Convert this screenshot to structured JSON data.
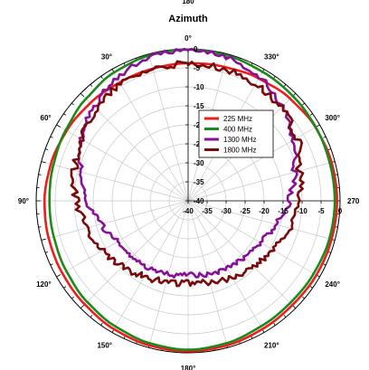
{
  "chart_data": {
    "type": "polar-line",
    "title": "Azimuth",
    "top_label": "180",
    "angle_labels": [
      {
        "angle": 0,
        "text": "0°"
      },
      {
        "angle": 30,
        "text": "330°"
      },
      {
        "angle": 60,
        "text": "300°"
      },
      {
        "angle": 90,
        "text": "270"
      },
      {
        "angle": 120,
        "text": "240°"
      },
      {
        "angle": 150,
        "text": "210°"
      },
      {
        "angle": 180,
        "text": "180°"
      },
      {
        "angle": 210,
        "text": "150°"
      },
      {
        "angle": 240,
        "text": "120°"
      },
      {
        "angle": 270,
        "text": "90°"
      },
      {
        "angle": 300,
        "text": "60°"
      },
      {
        "angle": 330,
        "text": "30°"
      }
    ],
    "radial_range": [
      -40,
      0
    ],
    "radial_ticks_vertical": [
      "0",
      "-5",
      "-10",
      "-15",
      "-20",
      "-25",
      "-30",
      "-35",
      "-40"
    ],
    "radial_ticks_horizontal": [
      "-40",
      "-35",
      "-30",
      "-25",
      "-20",
      "-15",
      "-10",
      "-5",
      "0"
    ],
    "grid": true,
    "legend_position": "upper-right-inside",
    "series": [
      {
        "name": "225 MHz",
        "color": "#ee1c1c",
        "noise": 0,
        "angles": [
          0,
          15,
          30,
          45,
          60,
          75,
          90,
          105,
          120,
          135,
          150,
          165,
          180,
          195,
          210,
          225,
          240,
          255,
          270,
          285,
          300,
          315,
          330,
          345
        ],
        "values": [
          -3.8,
          -3.5,
          -2.8,
          -2.0,
          -1.3,
          -0.9,
          -0.8,
          -0.9,
          -1.0,
          -1.2,
          -1.0,
          -0.6,
          -0.4,
          -0.6,
          -1.0,
          -1.5,
          -1.8,
          -2.0,
          -2.2,
          -2.6,
          -3.1,
          -3.6,
          -4.0,
          -4.0
        ]
      },
      {
        "name": "400 MHz",
        "color": "#1a8a1a",
        "noise": 0,
        "angles": [
          0,
          15,
          30,
          45,
          60,
          75,
          90,
          105,
          120,
          135,
          150,
          165,
          180,
          195,
          210,
          225,
          240,
          255,
          270,
          285,
          300,
          315,
          330,
          345
        ],
        "values": [
          -0.2,
          -0.4,
          -0.8,
          -1.0,
          -1.2,
          -1.4,
          -1.4,
          -1.5,
          -1.8,
          -2.0,
          -1.8,
          -1.2,
          -0.8,
          -1.2,
          -1.8,
          -2.4,
          -3.0,
          -3.4,
          -3.5,
          -3.3,
          -2.8,
          -2.0,
          -1.0,
          -0.4
        ]
      },
      {
        "name": "1300 MHz",
        "color": "#880f9a",
        "noise": 0.6,
        "angles": [
          0,
          15,
          30,
          45,
          60,
          75,
          90,
          105,
          120,
          135,
          150,
          165,
          180,
          195,
          210,
          225,
          240,
          255,
          270,
          285,
          300,
          315,
          330,
          345
        ],
        "values": [
          -0.2,
          -0.8,
          -2.5,
          -5.0,
          -8.0,
          -11.0,
          -13.5,
          -16.0,
          -18.0,
          -19.0,
          -19.5,
          -20.0,
          -20.5,
          -20.0,
          -19.5,
          -19.0,
          -18.5,
          -16.5,
          -13.5,
          -10.5,
          -7.5,
          -5.0,
          -2.5,
          -0.8
        ]
      },
      {
        "name": "1800 MHz",
        "color": "#7a0a0a",
        "noise": 0.9,
        "angles": [
          0,
          15,
          30,
          45,
          60,
          75,
          90,
          105,
          120,
          135,
          150,
          165,
          180,
          195,
          210,
          225,
          240,
          255,
          270,
          285,
          300,
          315,
          330,
          345
        ],
        "values": [
          -4.0,
          -4.0,
          -4.5,
          -5.5,
          -7.0,
          -9.5,
          -11.0,
          -12.5,
          -14.0,
          -15.5,
          -17.0,
          -18.0,
          -18.5,
          -18.0,
          -17.0,
          -15.5,
          -14.0,
          -12.5,
          -10.5,
          -9.0,
          -7.5,
          -6.0,
          -4.5,
          -4.0
        ]
      }
    ]
  }
}
